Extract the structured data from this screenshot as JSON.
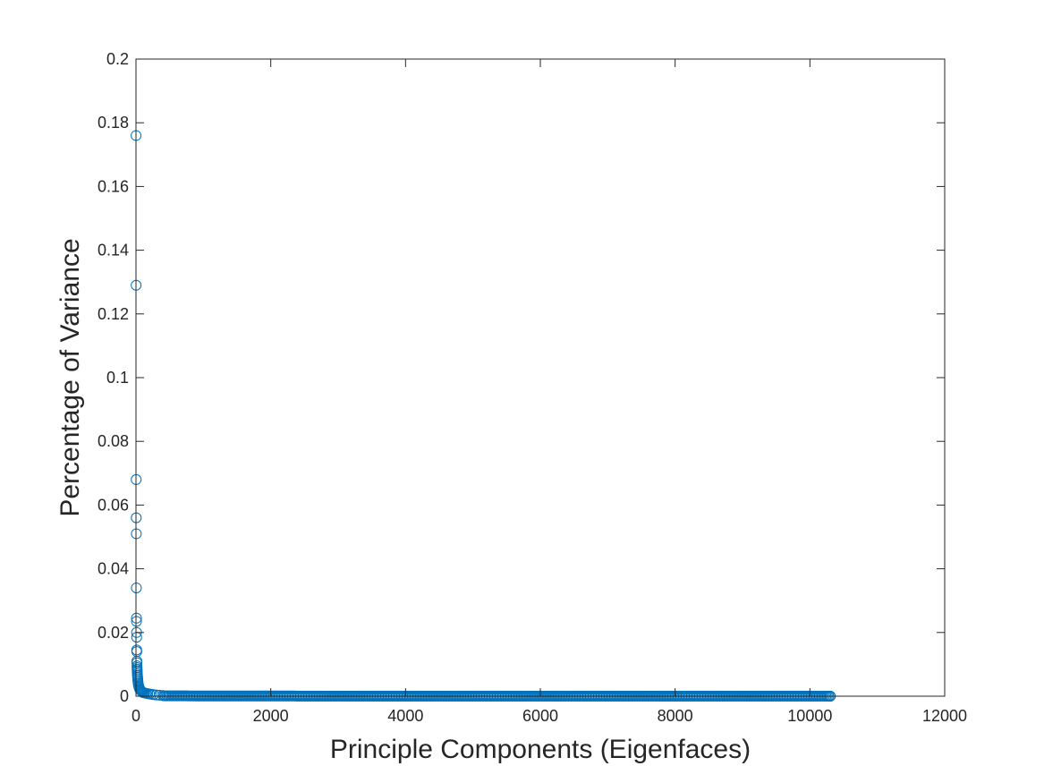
{
  "chart_data": {
    "type": "scatter",
    "title": "",
    "xlabel": "Principle Components (Eigenfaces)",
    "ylabel": "Percentage of Variance",
    "xlim": [
      0,
      12000
    ],
    "ylim": [
      0,
      0.2
    ],
    "xticks": [
      0,
      2000,
      4000,
      6000,
      8000,
      10000,
      12000
    ],
    "yticks": [
      0,
      0.02,
      0.04,
      0.06,
      0.08,
      0.1,
      0.12,
      0.14,
      0.16,
      0.18,
      0.2
    ],
    "xtick_labels": [
      "0",
      "2000",
      "4000",
      "6000",
      "8000",
      "10000",
      "12000"
    ],
    "ytick_labels": [
      "0",
      "0.02",
      "0.04",
      "0.06",
      "0.08",
      "0.1",
      "0.12",
      "0.14",
      "0.16",
      "0.18",
      "0.2"
    ],
    "grid": false,
    "box": true,
    "marker": "circle-open",
    "color": "#0072BD",
    "series": [
      {
        "n_points": 10304,
        "leading_points": [
          [
            1,
            0.176
          ],
          [
            2,
            0.129
          ],
          [
            3,
            0.068
          ],
          [
            4,
            0.056
          ],
          [
            5,
            0.051
          ],
          [
            6,
            0.034
          ],
          [
            7,
            0.0245
          ],
          [
            8,
            0.0235
          ],
          [
            9,
            0.02
          ],
          [
            10,
            0.0185
          ],
          [
            11,
            0.0145
          ],
          [
            12,
            0.014
          ],
          [
            13,
            0.011
          ],
          [
            14,
            0.0105
          ],
          [
            15,
            0.0095
          ],
          [
            16,
            0.009
          ],
          [
            17,
            0.0085
          ],
          [
            18,
            0.008
          ],
          [
            19,
            0.0075
          ],
          [
            20,
            0.007
          ],
          [
            22,
            0.0065
          ],
          [
            24,
            0.006
          ],
          [
            26,
            0.0055
          ],
          [
            28,
            0.005
          ],
          [
            30,
            0.0045
          ],
          [
            33,
            0.004
          ],
          [
            36,
            0.0036
          ],
          [
            40,
            0.0032
          ],
          [
            45,
            0.0028
          ],
          [
            50,
            0.0025
          ],
          [
            56,
            0.0022
          ],
          [
            63,
            0.002
          ],
          [
            70,
            0.0018
          ],
          [
            80,
            0.0016
          ],
          [
            90,
            0.0014
          ],
          [
            100,
            0.0012
          ],
          [
            115,
            0.0011
          ],
          [
            130,
            0.001
          ],
          [
            150,
            0.0009
          ],
          [
            175,
            0.0008
          ],
          [
            200,
            0.0007
          ],
          [
            230,
            0.0006
          ],
          [
            260,
            0.0005
          ],
          [
            300,
            0.0004
          ],
          [
            350,
            0.0003
          ],
          [
            400,
            0.0002
          ]
        ],
        "tail_value": 0.0001
      }
    ]
  }
}
